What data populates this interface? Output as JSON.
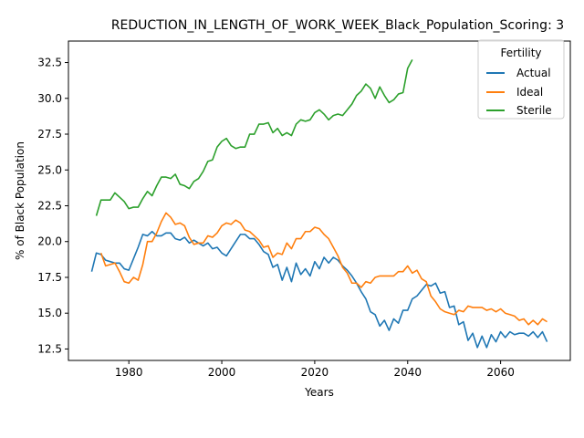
{
  "chart_data": {
    "type": "line",
    "title": "REDUCTION_IN_LENGTH_OF_WORK_WEEK_Black_Population_Scoring: 3",
    "xlabel": "Years",
    "ylabel": "% of Black Population",
    "xlim": [
      1967,
      2075
    ],
    "ylim": [
      11.7,
      34.0
    ],
    "xticks": [
      1980,
      2000,
      2020,
      2040,
      2060
    ],
    "yticks": [
      12.5,
      15.0,
      17.5,
      20.0,
      22.5,
      25.0,
      27.5,
      30.0,
      32.5
    ],
    "xtick_labels": [
      "1980",
      "2000",
      "2020",
      "2040",
      "2060"
    ],
    "ytick_labels": [
      "12.5",
      "15.0",
      "17.5",
      "20.0",
      "22.5",
      "25.0",
      "27.5",
      "30.0",
      "32.5"
    ],
    "grid": false,
    "legend": {
      "title": "Fertility",
      "position": "top-right"
    },
    "series": [
      {
        "name": "Actual",
        "color": "#1f77b4",
        "x": [
          1972,
          1973,
          1974,
          1975,
          1976,
          1977,
          1978,
          1979,
          1980,
          1981,
          1982,
          1983,
          1984,
          1985,
          1986,
          1987,
          1988,
          1989,
          1990,
          1991,
          1992,
          1993,
          1994,
          1995,
          1996,
          1997,
          1998,
          1999,
          2000,
          2001,
          2002,
          2003,
          2004,
          2005,
          2006,
          2007,
          2008,
          2009,
          2010,
          2011,
          2012,
          2013,
          2014,
          2015,
          2016,
          2017,
          2018,
          2019,
          2020,
          2021,
          2022,
          2023,
          2024,
          2025,
          2026,
          2027,
          2028,
          2029,
          2030,
          2031,
          2032,
          2033,
          2034,
          2035,
          2036,
          2037,
          2038,
          2039,
          2040,
          2041,
          2042,
          2043,
          2044,
          2045,
          2046,
          2047,
          2048,
          2049,
          2050,
          2051,
          2052,
          2053,
          2054,
          2055,
          2056,
          2057,
          2058,
          2059,
          2060,
          2061,
          2062,
          2063,
          2064,
          2065,
          2066,
          2067,
          2068,
          2069,
          2070
        ],
        "values": [
          17.9,
          19.2,
          19.1,
          18.7,
          18.6,
          18.5,
          18.5,
          18.1,
          18.0,
          18.8,
          19.6,
          20.5,
          20.4,
          20.7,
          20.4,
          20.4,
          20.6,
          20.6,
          20.2,
          20.1,
          20.3,
          19.9,
          20.1,
          19.9,
          19.7,
          19.9,
          19.5,
          19.6,
          19.2,
          19.0,
          19.5,
          20.0,
          20.5,
          20.5,
          20.2,
          20.2,
          19.8,
          19.3,
          19.1,
          18.2,
          18.4,
          17.3,
          18.2,
          17.2,
          18.5,
          17.7,
          18.1,
          17.6,
          18.6,
          18.1,
          18.9,
          18.5,
          18.9,
          18.7,
          18.3,
          18.0,
          17.6,
          17.1,
          16.5,
          16.0,
          15.1,
          14.9,
          14.1,
          14.5,
          13.8,
          14.6,
          14.3,
          15.2,
          15.2,
          16.0,
          16.2,
          16.6,
          17.0,
          16.9,
          17.1,
          16.4,
          16.5,
          15.4,
          15.5,
          14.2,
          14.4,
          13.1,
          13.6,
          12.6,
          13.4,
          12.6,
          13.5,
          13.0,
          13.7,
          13.3,
          13.7,
          13.5,
          13.6,
          13.6,
          13.4,
          13.7,
          13.3,
          13.7,
          13.0
        ]
      },
      {
        "name": "Ideal",
        "color": "#ff7f0e",
        "x": [
          1974,
          1975,
          1976,
          1977,
          1978,
          1979,
          1980,
          1981,
          1982,
          1983,
          1984,
          1985,
          1986,
          1987,
          1988,
          1989,
          1990,
          1991,
          1992,
          1993,
          1994,
          1995,
          1996,
          1997,
          1998,
          1999,
          2000,
          2001,
          2002,
          2003,
          2004,
          2005,
          2006,
          2007,
          2008,
          2009,
          2010,
          2011,
          2012,
          2013,
          2014,
          2015,
          2016,
          2017,
          2018,
          2019,
          2020,
          2021,
          2022,
          2023,
          2024,
          2025,
          2026,
          2027,
          2028,
          2029,
          2030,
          2031,
          2032,
          2033,
          2034,
          2035,
          2036,
          2037,
          2038,
          2039,
          2040,
          2041,
          2042,
          2043,
          2044,
          2045,
          2046,
          2047,
          2048,
          2049,
          2050,
          2051,
          2052,
          2053,
          2054,
          2055,
          2056,
          2057,
          2058,
          2059,
          2060,
          2061,
          2062,
          2063,
          2064,
          2065,
          2066,
          2067,
          2068,
          2069,
          2070
        ],
        "values": [
          19.2,
          18.3,
          18.4,
          18.5,
          17.9,
          17.2,
          17.1,
          17.5,
          17.3,
          18.4,
          20.0,
          20.0,
          20.6,
          21.4,
          22.0,
          21.7,
          21.2,
          21.3,
          21.1,
          20.3,
          19.8,
          19.9,
          19.9,
          20.4,
          20.3,
          20.6,
          21.1,
          21.3,
          21.2,
          21.5,
          21.3,
          20.8,
          20.7,
          20.4,
          20.1,
          19.6,
          19.7,
          18.9,
          19.2,
          19.1,
          19.9,
          19.5,
          20.2,
          20.2,
          20.7,
          20.7,
          21.0,
          20.9,
          20.5,
          20.2,
          19.6,
          19.0,
          18.2,
          17.8,
          17.1,
          17.1,
          16.8,
          17.2,
          17.1,
          17.5,
          17.6,
          17.6,
          17.6,
          17.6,
          17.9,
          17.9,
          18.3,
          17.8,
          18.0,
          17.4,
          17.2,
          16.2,
          15.8,
          15.3,
          15.1,
          15.0,
          14.9,
          15.2,
          15.1,
          15.5,
          15.4,
          15.4,
          15.4,
          15.2,
          15.3,
          15.1,
          15.3,
          15.0,
          14.9,
          14.8,
          14.5,
          14.6,
          14.2,
          14.5,
          14.2,
          14.6,
          14.4
        ]
      },
      {
        "name": "Sterile",
        "color": "#2ca02c",
        "x": [
          1973,
          1974,
          1975,
          1976,
          1977,
          1978,
          1979,
          1980,
          1981,
          1982,
          1983,
          1984,
          1985,
          1986,
          1987,
          1988,
          1989,
          1990,
          1991,
          1992,
          1993,
          1994,
          1995,
          1996,
          1997,
          1998,
          1999,
          2000,
          2001,
          2002,
          2003,
          2004,
          2005,
          2006,
          2007,
          2008,
          2009,
          2010,
          2011,
          2012,
          2013,
          2014,
          2015,
          2016,
          2017,
          2018,
          2019,
          2020,
          2021,
          2022,
          2023,
          2024,
          2025,
          2026,
          2027,
          2028,
          2029,
          2030,
          2031,
          2032,
          2033,
          2034,
          2035,
          2036,
          2037,
          2038,
          2039,
          2040,
          2041
        ],
        "values": [
          21.8,
          22.9,
          22.9,
          22.9,
          23.4,
          23.1,
          22.8,
          22.3,
          22.4,
          22.4,
          23.0,
          23.5,
          23.2,
          23.9,
          24.5,
          24.5,
          24.4,
          24.7,
          24.0,
          23.9,
          23.7,
          24.2,
          24.4,
          24.9,
          25.6,
          25.7,
          26.6,
          27.0,
          27.2,
          26.7,
          26.5,
          26.6,
          26.6,
          27.5,
          27.5,
          28.2,
          28.2,
          28.3,
          27.6,
          27.9,
          27.4,
          27.6,
          27.4,
          28.2,
          28.5,
          28.4,
          28.5,
          29.0,
          29.2,
          28.9,
          28.5,
          28.8,
          28.9,
          28.8,
          29.2,
          29.6,
          30.2,
          30.5,
          31.0,
          30.7,
          30.0,
          30.8,
          30.2,
          29.7,
          29.9,
          30.3,
          30.4,
          32.1,
          32.7
        ]
      }
    ]
  }
}
